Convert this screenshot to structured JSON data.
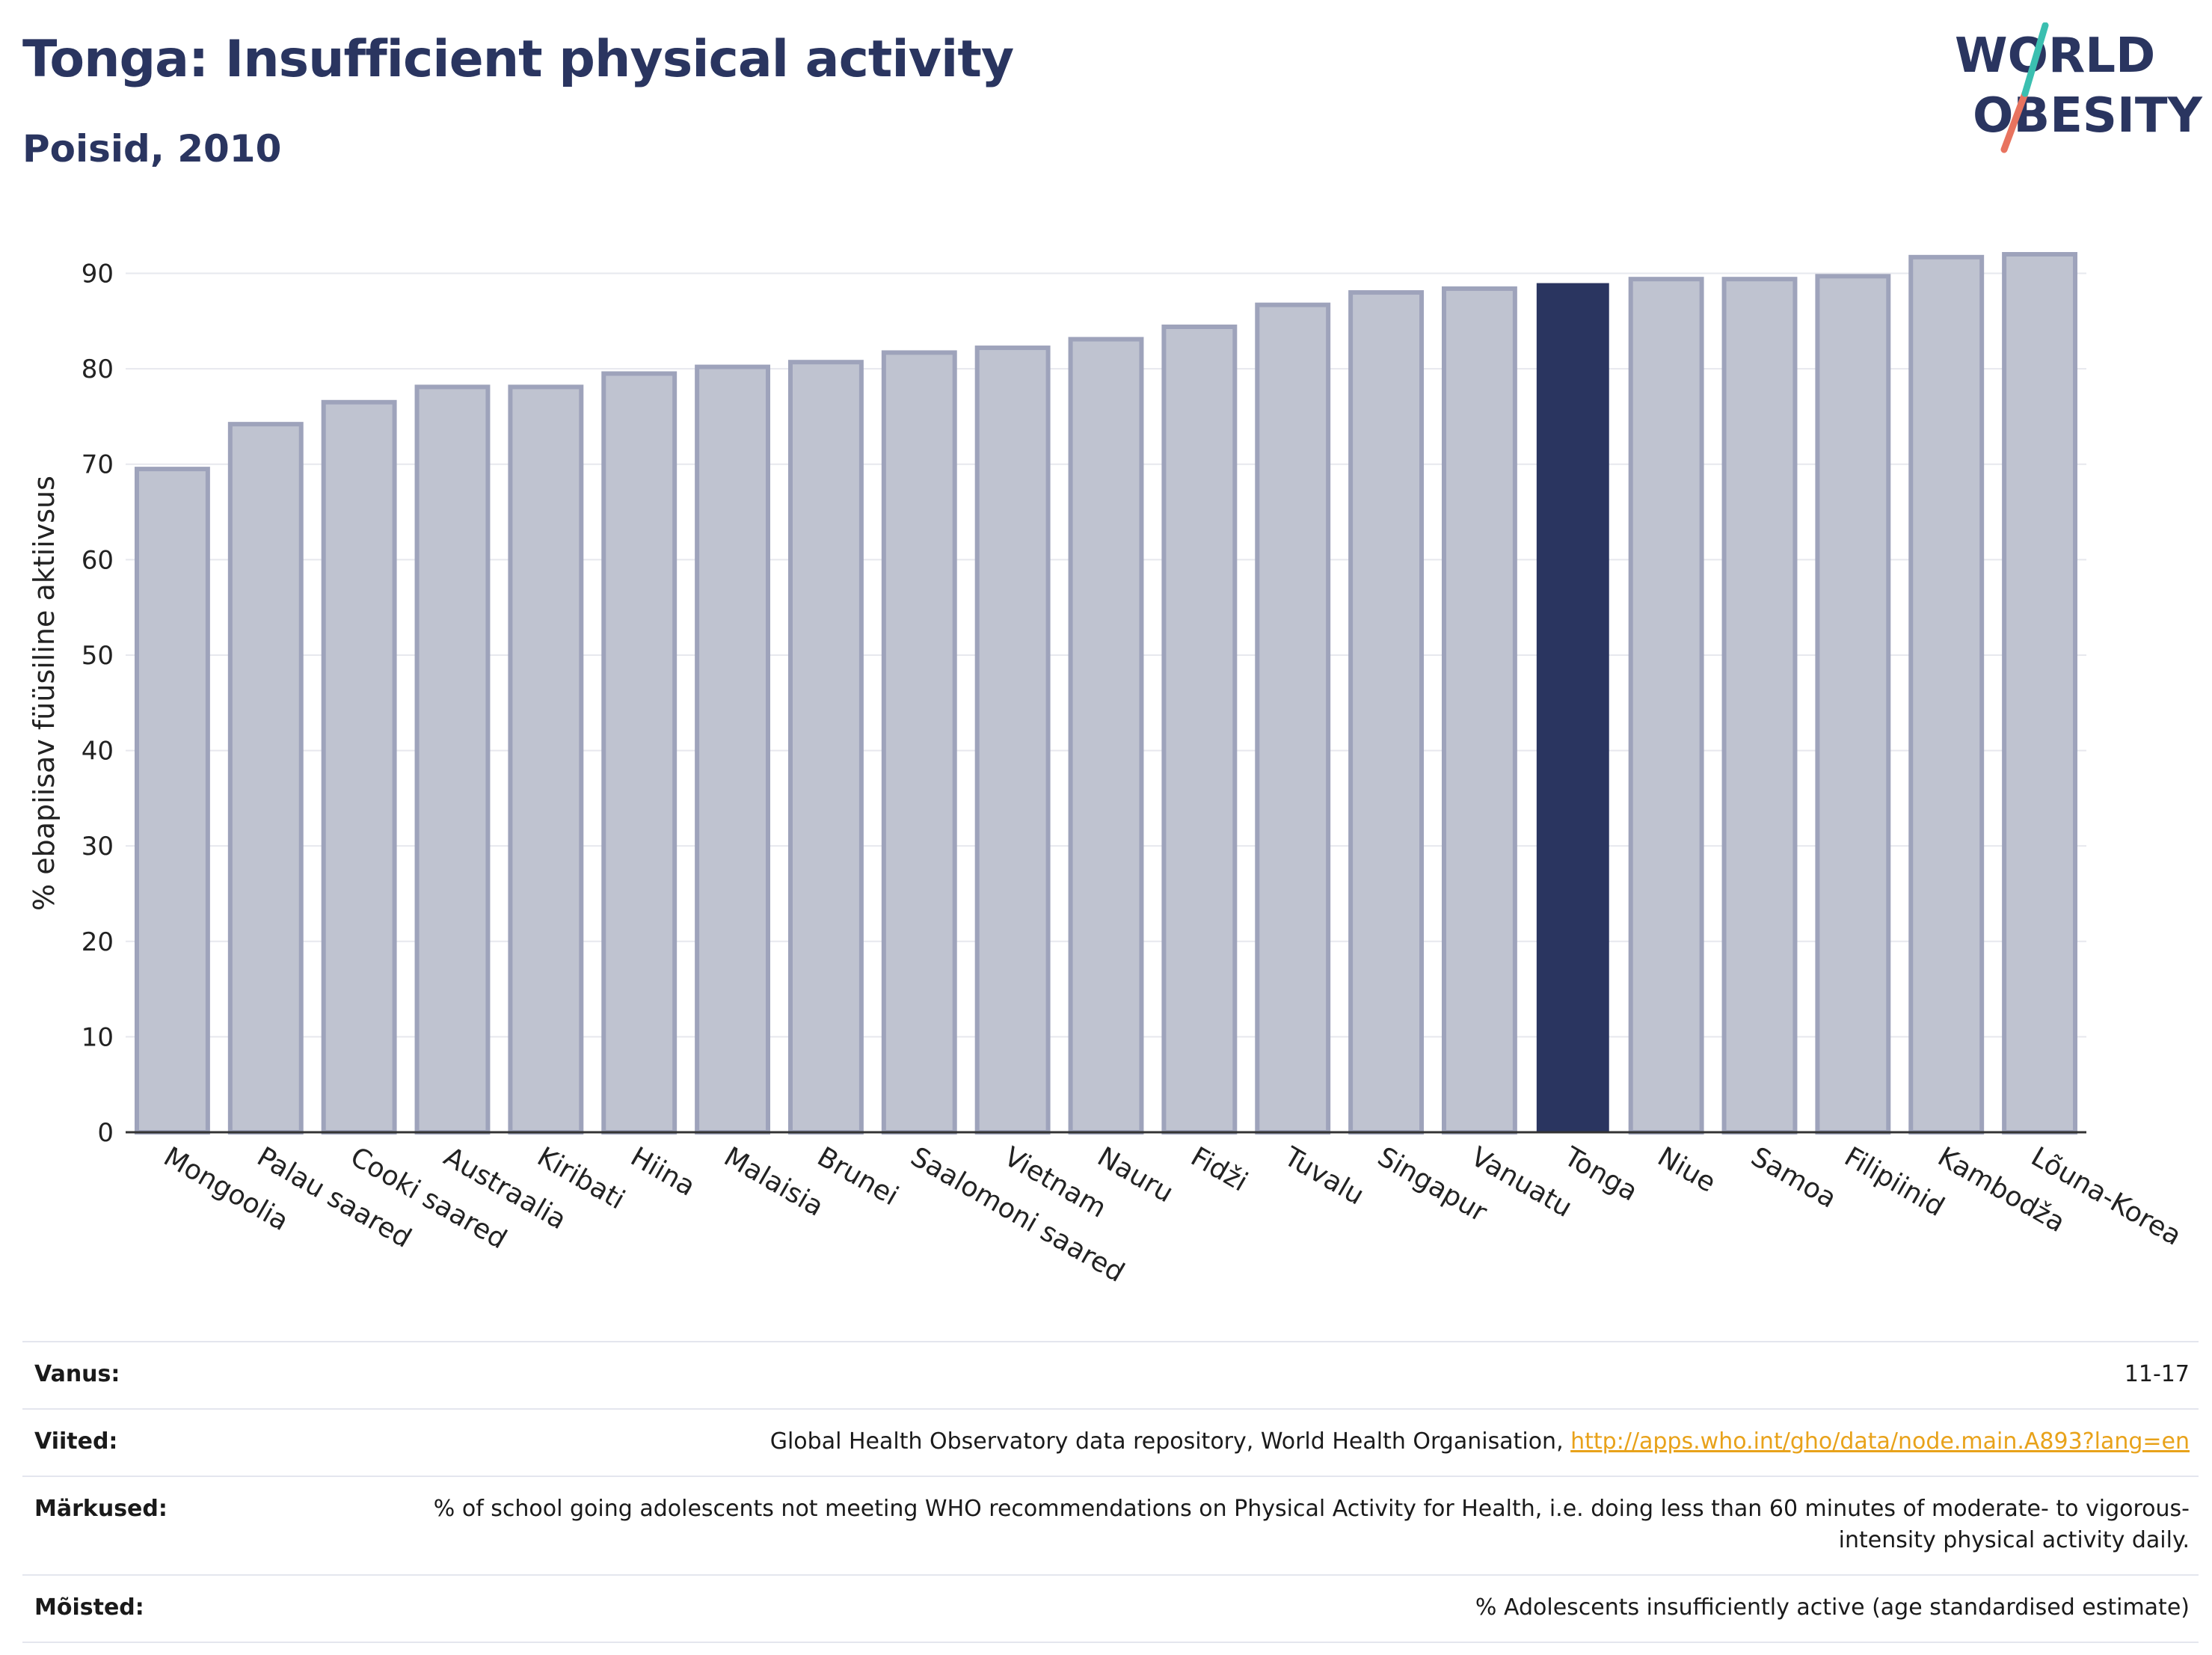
{
  "header": {
    "title": "Tonga: Insufficient physical activity",
    "subtitle": "Poisid, 2010"
  },
  "logo": {
    "line1": "WORLD",
    "line2": "OBESITY"
  },
  "chart_data": {
    "type": "bar",
    "ylabel": "% ebapiisav füüsiline aktiivsus",
    "ylim": [
      0,
      92
    ],
    "yticks": [
      0,
      10,
      20,
      30,
      40,
      50,
      60,
      70,
      80,
      90
    ],
    "grid": true,
    "highlight": "Tonga",
    "colors": {
      "default_fill": "#bfc3d0",
      "default_stroke": "#9ea3bb",
      "highlight": "#2a3560"
    },
    "categories": [
      "Mongoolia",
      "Palau saared",
      "Cooki saared",
      "Austraalia",
      "Kiribati",
      "Hiina",
      "Malaisia",
      "Brunei",
      "Saalomoni saared",
      "Vietnam",
      "Nauru",
      "Fidži",
      "Tuvalu",
      "Singapur",
      "Vanuatu",
      "Tonga",
      "Niue",
      "Samoa",
      "Filipiinid",
      "Kambodža",
      "Lõuna-Korea"
    ],
    "values": [
      69.5,
      74.2,
      76.5,
      78.1,
      78.1,
      79.5,
      80.2,
      80.7,
      81.7,
      82.2,
      83.1,
      84.4,
      86.7,
      88.0,
      88.4,
      88.9,
      89.4,
      89.4,
      89.7,
      91.7,
      92.0
    ]
  },
  "info": [
    {
      "key": "Vanus:",
      "value": "11-17"
    },
    {
      "key": "Viited:",
      "value": "Global Health Observatory data repository, World Health Organisation, ",
      "link": "http://apps.who.int/gho/data/node.main.A893?lang=en"
    },
    {
      "key": "Märkused:",
      "value": "% of school going adolescents not meeting WHO recommendations on Physical Activity for Health, i.e. doing less than 60 minutes of moderate- to vigorous-intensity physical activity daily."
    },
    {
      "key": "Mõisted:",
      "value": "% Adolescents insufficiently active (age standardised estimate)"
    }
  ]
}
